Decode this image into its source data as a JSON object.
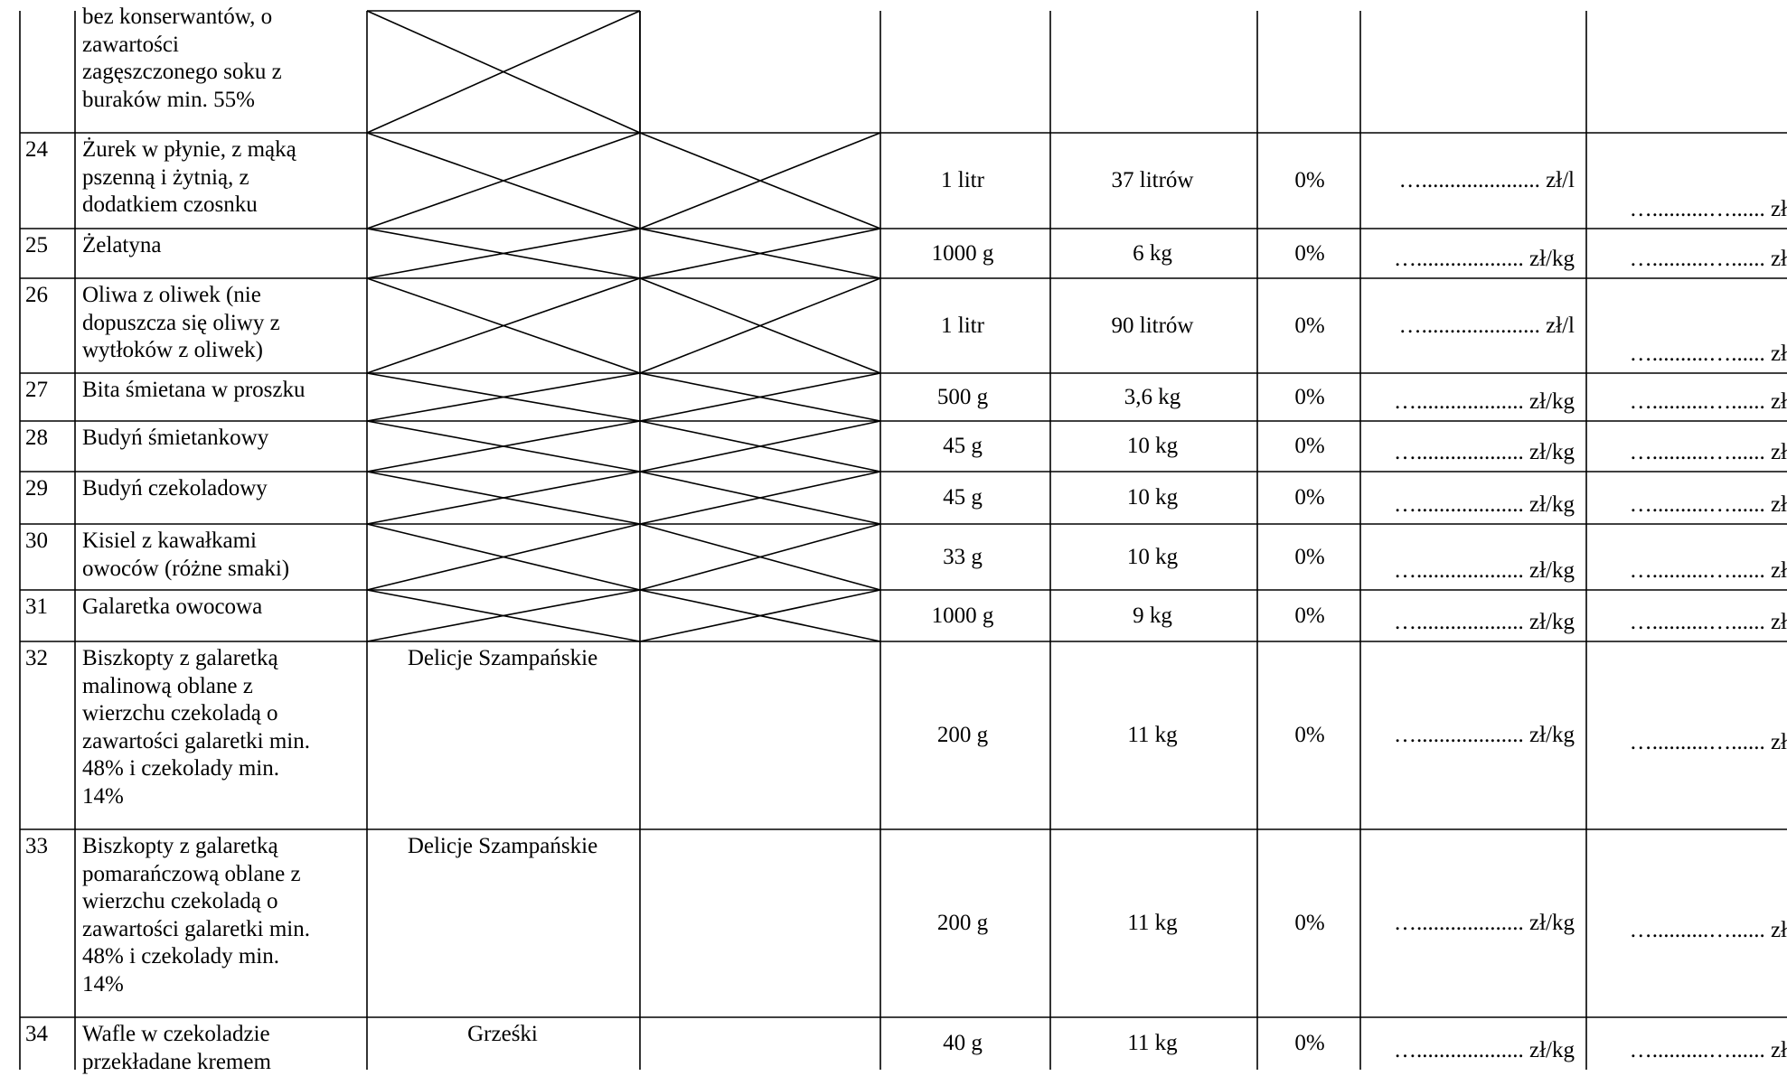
{
  "rows": [
    {
      "num": "",
      "description": "bez konserwantów, o\nzawartości\nzagęszczonego soku z\nburaków min. 55%",
      "brand": "",
      "unit": "",
      "quantity": "",
      "vat": "",
      "unit_price": "",
      "total": "",
      "brand_crossed": true,
      "extra_crossed": false
    },
    {
      "num": "24",
      "description": "Żurek w płynie, z mąką\npszenną i żytnią, z\ndodatkiem czosnku",
      "brand": "",
      "unit": "1 litr",
      "quantity": "37 litrów",
      "vat": "0%",
      "unit_price": "…..................... zł/l",
      "total": "…..........…...... zł",
      "brand_crossed": true,
      "extra_crossed": true
    },
    {
      "num": "25",
      "description": "Żelatyna",
      "brand": "",
      "unit": "1000 g",
      "quantity": "6 kg",
      "vat": "0%",
      "unit_price": "…................... zł/kg",
      "total": "…..........…...... zł",
      "brand_crossed": true,
      "extra_crossed": true
    },
    {
      "num": "26",
      "description": "Oliwa z oliwek (nie\ndopuszcza się oliwy z\nwytłoków z oliwek)",
      "brand": "",
      "unit": "1 litr",
      "quantity": "90 litrów",
      "vat": "0%",
      "unit_price": "…..................... zł/l",
      "total": "…..........…...... zł",
      "brand_crossed": true,
      "extra_crossed": true
    },
    {
      "num": "27",
      "description": "Bita śmietana w proszku",
      "brand": "",
      "unit": "500 g",
      "quantity": "3,6 kg",
      "vat": "0%",
      "unit_price": "…................... zł/kg",
      "total": "…..........…...... zł",
      "brand_crossed": true,
      "extra_crossed": true
    },
    {
      "num": "28",
      "description": "Budyń śmietankowy",
      "brand": "",
      "unit": "45 g",
      "quantity": "10 kg",
      "vat": "0%",
      "unit_price": "…................... zł/kg",
      "total": "…..........…...... zł",
      "brand_crossed": true,
      "extra_crossed": true
    },
    {
      "num": "29",
      "description": "Budyń czekoladowy",
      "brand": "",
      "unit": "45 g",
      "quantity": "10 kg",
      "vat": "0%",
      "unit_price": "…................... zł/kg",
      "total": "…..........…...... zł",
      "brand_crossed": true,
      "extra_crossed": true
    },
    {
      "num": "30",
      "description": "Kisiel z kawałkami\nowoców (różne smaki)",
      "brand": "",
      "unit": "33 g",
      "quantity": "10 kg",
      "vat": "0%",
      "unit_price": "…................... zł/kg",
      "total": "…..........…...... zł",
      "brand_crossed": true,
      "extra_crossed": true
    },
    {
      "num": "31",
      "description": "Galaretka owocowa",
      "brand": "",
      "unit": "1000 g",
      "quantity": "9 kg",
      "vat": "0%",
      "unit_price": "…................... zł/kg",
      "total": "…..........…...... zł",
      "brand_crossed": true,
      "extra_crossed": true
    },
    {
      "num": "32",
      "description": "Biszkopty z galaretką\nmalinową oblane z\nwierzchu czekoladą o\nzawartości galaretki min.\n48% i czekolady min.\n14%",
      "brand": "Delicje Szampańskie",
      "unit": "200 g",
      "quantity": "11 kg",
      "vat": "0%",
      "unit_price": "…................... zł/kg",
      "total": "…..........…...... zł",
      "brand_crossed": false,
      "extra_crossed": false
    },
    {
      "num": "33",
      "description": "Biszkopty z galaretką\npomarańczową oblane z\nwierzchu czekoladą o\nzawartości galaretki min.\n48% i czekolady min.\n14%",
      "brand": "Delicje Szampańskie",
      "unit": "200 g",
      "quantity": "11 kg",
      "vat": "0%",
      "unit_price": "…................... zł/kg",
      "total": "…..........…...... zł",
      "brand_crossed": false,
      "extra_crossed": false
    },
    {
      "num": "34",
      "description": "Wafle w czekoladzie\nprzekładane kremem",
      "brand": "Grześki",
      "unit": "40 g",
      "quantity": "11 kg",
      "vat": "0%",
      "unit_price": "…................... zł/kg",
      "total": "…..........…...... zł",
      "brand_crossed": false,
      "extra_crossed": false
    }
  ]
}
